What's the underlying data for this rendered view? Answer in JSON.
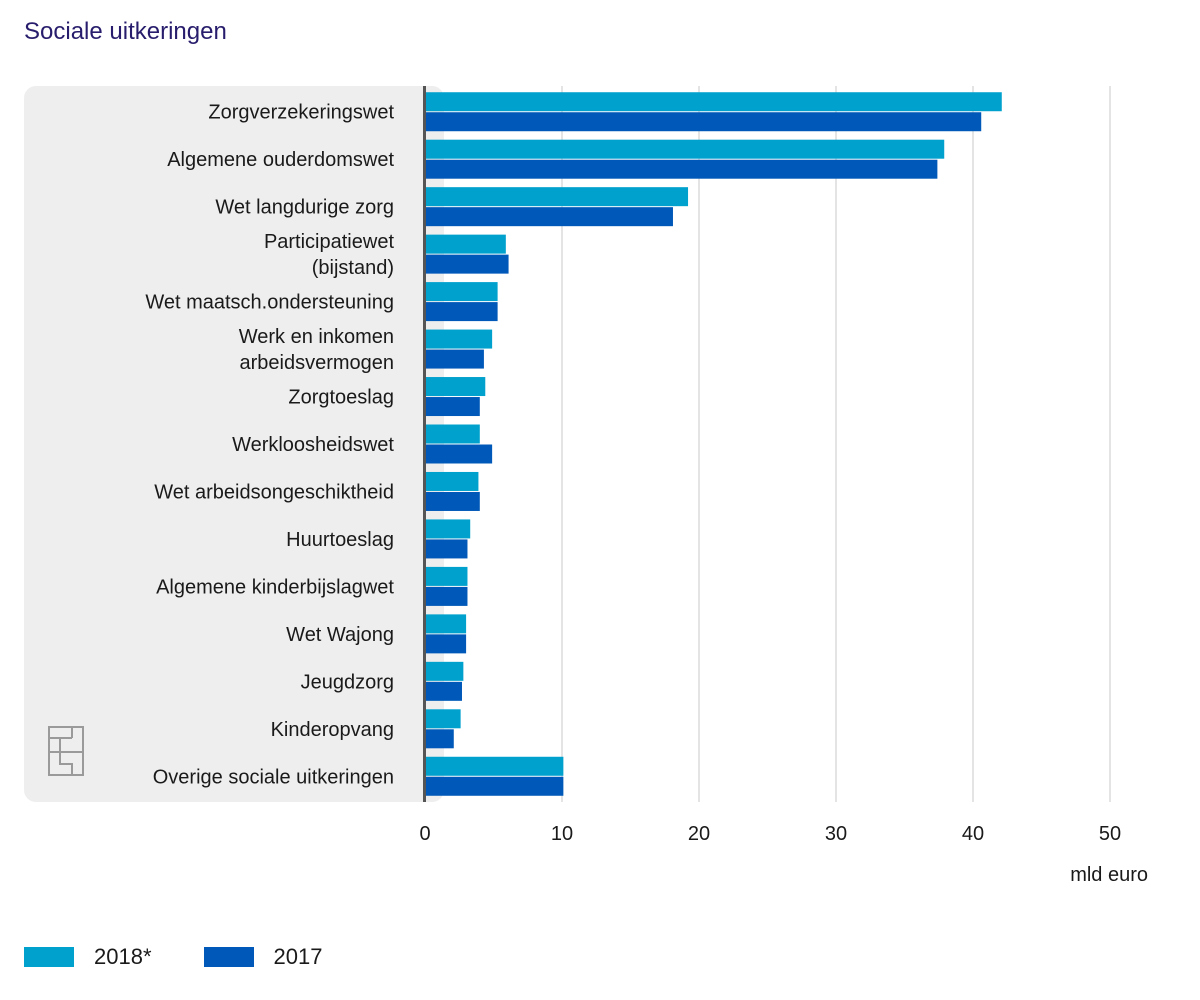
{
  "chart_data": {
    "type": "bar",
    "orientation": "horizontal",
    "title": "Sociale uitkeringen",
    "xlabel": "mld euro",
    "ylabel": "",
    "xlim": [
      0,
      50
    ],
    "xticks": [
      0,
      10,
      20,
      30,
      40,
      50
    ],
    "grid": true,
    "legend_position": "bottom-left",
    "categories": [
      "Zorgverzekeringswet",
      "Algemene ouderdomswet",
      "Wet langdurige zorg",
      "Participatiewet (bijstand)",
      "Wet maatsch.ondersteuning",
      "Werk en inkomen arbeidsvermogen",
      "Zorgtoeslag",
      "Werkloosheidswet",
      "Wet arbeidsongeschiktheid",
      "Huurtoeslag",
      "Algemene kinderbijslagwet",
      "Wet Wajong",
      "Jeugdzorg",
      "Kinderopvang",
      "Overige sociale uitkeringen"
    ],
    "category_lines": [
      [
        "Zorgverzekeringswet"
      ],
      [
        "Algemene ouderdomswet"
      ],
      [
        "Wet langdurige zorg"
      ],
      [
        "Participatiewet",
        "(bijstand)"
      ],
      [
        "Wet maatsch.ondersteuning"
      ],
      [
        "Werk en inkomen",
        "arbeidsvermogen"
      ],
      [
        "Zorgtoeslag"
      ],
      [
        "Werkloosheidswet"
      ],
      [
        "Wet arbeidsongeschiktheid"
      ],
      [
        "Huurtoeslag"
      ],
      [
        "Algemene kinderbijslagwet"
      ],
      [
        "Wet Wajong"
      ],
      [
        "Jeugdzorg"
      ],
      [
        "Kinderopvang"
      ],
      [
        "Overige sociale uitkeringen"
      ]
    ],
    "series": [
      {
        "name": "2018*",
        "color": "#00a1cd",
        "values": [
          42.1,
          37.9,
          19.2,
          5.9,
          5.3,
          4.9,
          4.4,
          4.0,
          3.9,
          3.3,
          3.1,
          3.0,
          2.8,
          2.6,
          10.1
        ]
      },
      {
        "name": "2017",
        "color": "#0058b8",
        "values": [
          40.6,
          37.4,
          18.1,
          6.1,
          5.3,
          4.3,
          4.0,
          4.9,
          4.0,
          3.1,
          3.1,
          3.0,
          2.7,
          2.1,
          10.1
        ]
      }
    ]
  },
  "logo": {
    "icon": "cbs-logo-icon"
  },
  "colors": {
    "panel_bg": "#eeeeee",
    "axis": "#555555",
    "grid": "#c8c8c8",
    "title": "#271d6c"
  }
}
